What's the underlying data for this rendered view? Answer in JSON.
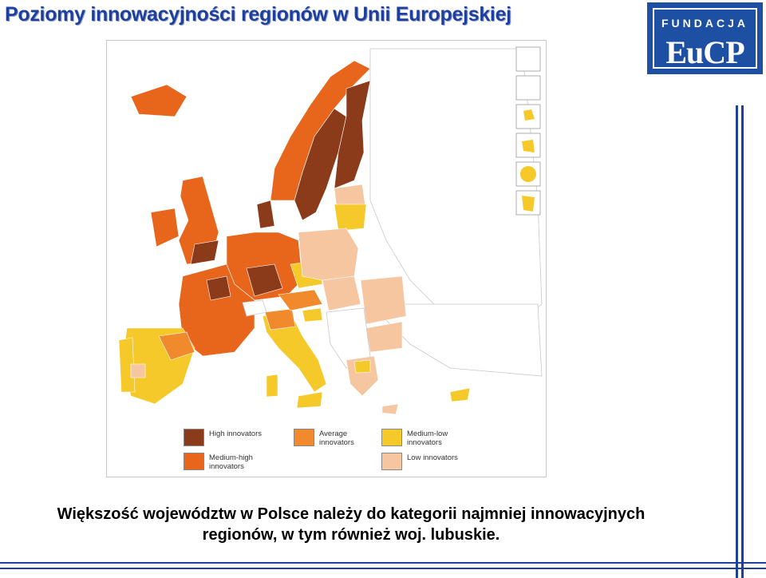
{
  "slide": {
    "title": "Poziomy innowacyjności regionów w Unii Europejskiej",
    "caption_line1": "Większość województw w Polsce należy do kategorii najmniej innowacyjnych",
    "caption_line2": "regionów, w tym również woj. lubuskie."
  },
  "logo": {
    "top_text": "FUNDACJA",
    "main_text": "EuCP",
    "bg_color": "#1d4fa3"
  },
  "legend": [
    {
      "label": "High innovators",
      "color": "#8b3a1a"
    },
    {
      "label": "Average innovators",
      "color": "#f08a2c"
    },
    {
      "label": "Medium-low innovators",
      "color": "#f5c92a"
    },
    {
      "label": "Medium-high innovators",
      "color": "#e8661c"
    },
    {
      "label": "Low innovators",
      "color": "#f5c6a0"
    }
  ],
  "colors": {
    "accent": "#1d3f9e",
    "non_eu": "#ffffff"
  }
}
